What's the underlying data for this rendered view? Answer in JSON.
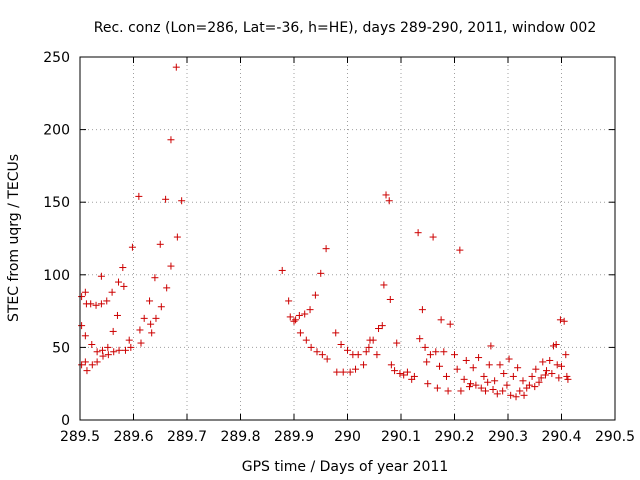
{
  "chart_data": {
    "type": "scatter",
    "title": "Rec. conz (Lon=286, Lat=-36, h=HE), days 289-290, 2011, window 002",
    "xlabel": "GPS time / Days of year 2011",
    "ylabel": "STEC from uqrg / TECUs",
    "xlim": [
      289.5,
      290.5
    ],
    "ylim": [
      0,
      250
    ],
    "xticks": [
      "289.5",
      "289.6",
      "289.7",
      "289.8",
      "289.9",
      "290",
      "290.1",
      "290.2",
      "290.3",
      "290.4",
      "290.5"
    ],
    "yticks": [
      "0",
      "50",
      "100",
      "150",
      "200",
      "250"
    ],
    "grid": true,
    "marker": "+",
    "color": "#cc0000",
    "series": [
      {
        "name": "STEC",
        "points": [
          [
            289.503,
            85
          ],
          [
            289.503,
            65
          ],
          [
            289.503,
            38
          ],
          [
            289.51,
            88
          ],
          [
            289.512,
            80
          ],
          [
            289.51,
            58
          ],
          [
            289.51,
            40
          ],
          [
            289.513,
            34
          ],
          [
            289.52,
            80
          ],
          [
            289.522,
            52
          ],
          [
            289.523,
            38
          ],
          [
            289.53,
            79
          ],
          [
            289.532,
            47
          ],
          [
            289.532,
            40
          ],
          [
            289.54,
            99
          ],
          [
            289.54,
            80
          ],
          [
            289.542,
            48
          ],
          [
            289.543,
            44
          ],
          [
            289.55,
            82
          ],
          [
            289.552,
            50
          ],
          [
            289.553,
            45
          ],
          [
            289.56,
            88
          ],
          [
            289.562,
            61
          ],
          [
            289.563,
            47
          ],
          [
            289.57,
            72
          ],
          [
            289.572,
            95
          ],
          [
            289.573,
            48
          ],
          [
            289.58,
            105
          ],
          [
            289.582,
            92
          ],
          [
            289.585,
            48
          ],
          [
            289.592,
            55
          ],
          [
            289.595,
            50
          ],
          [
            289.598,
            119
          ],
          [
            289.61,
            154
          ],
          [
            289.612,
            62
          ],
          [
            289.614,
            53
          ],
          [
            289.62,
            70
          ],
          [
            289.63,
            82
          ],
          [
            289.632,
            66
          ],
          [
            289.634,
            60
          ],
          [
            289.64,
            98
          ],
          [
            289.642,
            70
          ],
          [
            289.65,
            121
          ],
          [
            289.652,
            78
          ],
          [
            289.66,
            152
          ],
          [
            289.662,
            91
          ],
          [
            289.67,
            193
          ],
          [
            289.67,
            106
          ],
          [
            289.68,
            243
          ],
          [
            289.682,
            126
          ],
          [
            289.69,
            151
          ],
          [
            289.878,
            103
          ],
          [
            289.89,
            82
          ],
          [
            289.893,
            71
          ],
          [
            289.9,
            68
          ],
          [
            289.903,
            69
          ],
          [
            289.91,
            72
          ],
          [
            289.912,
            60
          ],
          [
            289.92,
            73
          ],
          [
            289.923,
            55
          ],
          [
            289.93,
            76
          ],
          [
            289.932,
            50
          ],
          [
            289.94,
            86
          ],
          [
            289.943,
            47
          ],
          [
            289.95,
            101
          ],
          [
            289.953,
            45
          ],
          [
            289.96,
            118
          ],
          [
            289.962,
            42
          ],
          [
            289.978,
            60
          ],
          [
            289.98,
            33
          ],
          [
            289.988,
            52
          ],
          [
            289.992,
            33
          ],
          [
            290.0,
            48
          ],
          [
            290.005,
            33
          ],
          [
            290.01,
            45
          ],
          [
            290.015,
            35
          ],
          [
            290.02,
            45
          ],
          [
            290.03,
            38
          ],
          [
            290.035,
            47
          ],
          [
            290.04,
            50
          ],
          [
            290.042,
            55
          ],
          [
            290.048,
            55
          ],
          [
            290.055,
            45
          ],
          [
            290.058,
            63
          ],
          [
            290.065,
            65
          ],
          [
            290.068,
            93
          ],
          [
            290.072,
            155
          ],
          [
            290.078,
            151
          ],
          [
            290.08,
            83
          ],
          [
            290.082,
            38
          ],
          [
            290.088,
            34
          ],
          [
            290.092,
            53
          ],
          [
            290.098,
            32
          ],
          [
            290.105,
            31
          ],
          [
            290.112,
            33
          ],
          [
            290.12,
            28
          ],
          [
            290.125,
            30
          ],
          [
            290.132,
            129
          ],
          [
            290.135,
            56
          ],
          [
            290.14,
            76
          ],
          [
            290.145,
            50
          ],
          [
            290.148,
            40
          ],
          [
            290.15,
            25
          ],
          [
            290.155,
            45
          ],
          [
            290.16,
            126
          ],
          [
            290.165,
            47
          ],
          [
            290.168,
            22
          ],
          [
            290.172,
            37
          ],
          [
            290.175,
            69
          ],
          [
            290.18,
            47
          ],
          [
            290.185,
            30
          ],
          [
            290.188,
            20
          ],
          [
            290.192,
            66
          ],
          [
            290.2,
            45
          ],
          [
            290.205,
            35
          ],
          [
            290.21,
            117
          ],
          [
            290.212,
            20
          ],
          [
            290.218,
            28
          ],
          [
            290.222,
            41
          ],
          [
            290.228,
            23
          ],
          [
            290.23,
            25
          ],
          [
            290.235,
            36
          ],
          [
            290.24,
            24
          ],
          [
            290.245,
            43
          ],
          [
            290.25,
            22
          ],
          [
            290.255,
            30
          ],
          [
            290.258,
            20
          ],
          [
            290.262,
            26
          ],
          [
            290.265,
            38
          ],
          [
            290.268,
            51
          ],
          [
            290.272,
            21
          ],
          [
            290.275,
            27
          ],
          [
            290.28,
            18
          ],
          [
            290.285,
            38
          ],
          [
            290.29,
            20
          ],
          [
            290.292,
            32
          ],
          [
            290.298,
            24
          ],
          [
            290.302,
            42
          ],
          [
            290.305,
            17
          ],
          [
            290.31,
            30
          ],
          [
            290.315,
            16
          ],
          [
            290.318,
            36
          ],
          [
            290.322,
            20
          ],
          [
            290.328,
            27
          ],
          [
            290.33,
            17
          ],
          [
            290.335,
            22
          ],
          [
            290.34,
            24
          ],
          [
            290.345,
            30
          ],
          [
            290.35,
            23
          ],
          [
            290.352,
            35
          ],
          [
            290.358,
            26
          ],
          [
            290.362,
            29
          ],
          [
            290.365,
            40
          ],
          [
            290.37,
            31
          ],
          [
            290.372,
            34
          ],
          [
            290.378,
            41
          ],
          [
            290.382,
            32
          ],
          [
            290.385,
            51
          ],
          [
            290.39,
            52
          ],
          [
            290.392,
            38
          ],
          [
            290.395,
            29
          ],
          [
            290.398,
            69
          ],
          [
            290.4,
            37
          ],
          [
            290.405,
            68
          ],
          [
            290.408,
            45
          ],
          [
            290.41,
            30
          ],
          [
            290.412,
            28
          ]
        ]
      }
    ]
  }
}
